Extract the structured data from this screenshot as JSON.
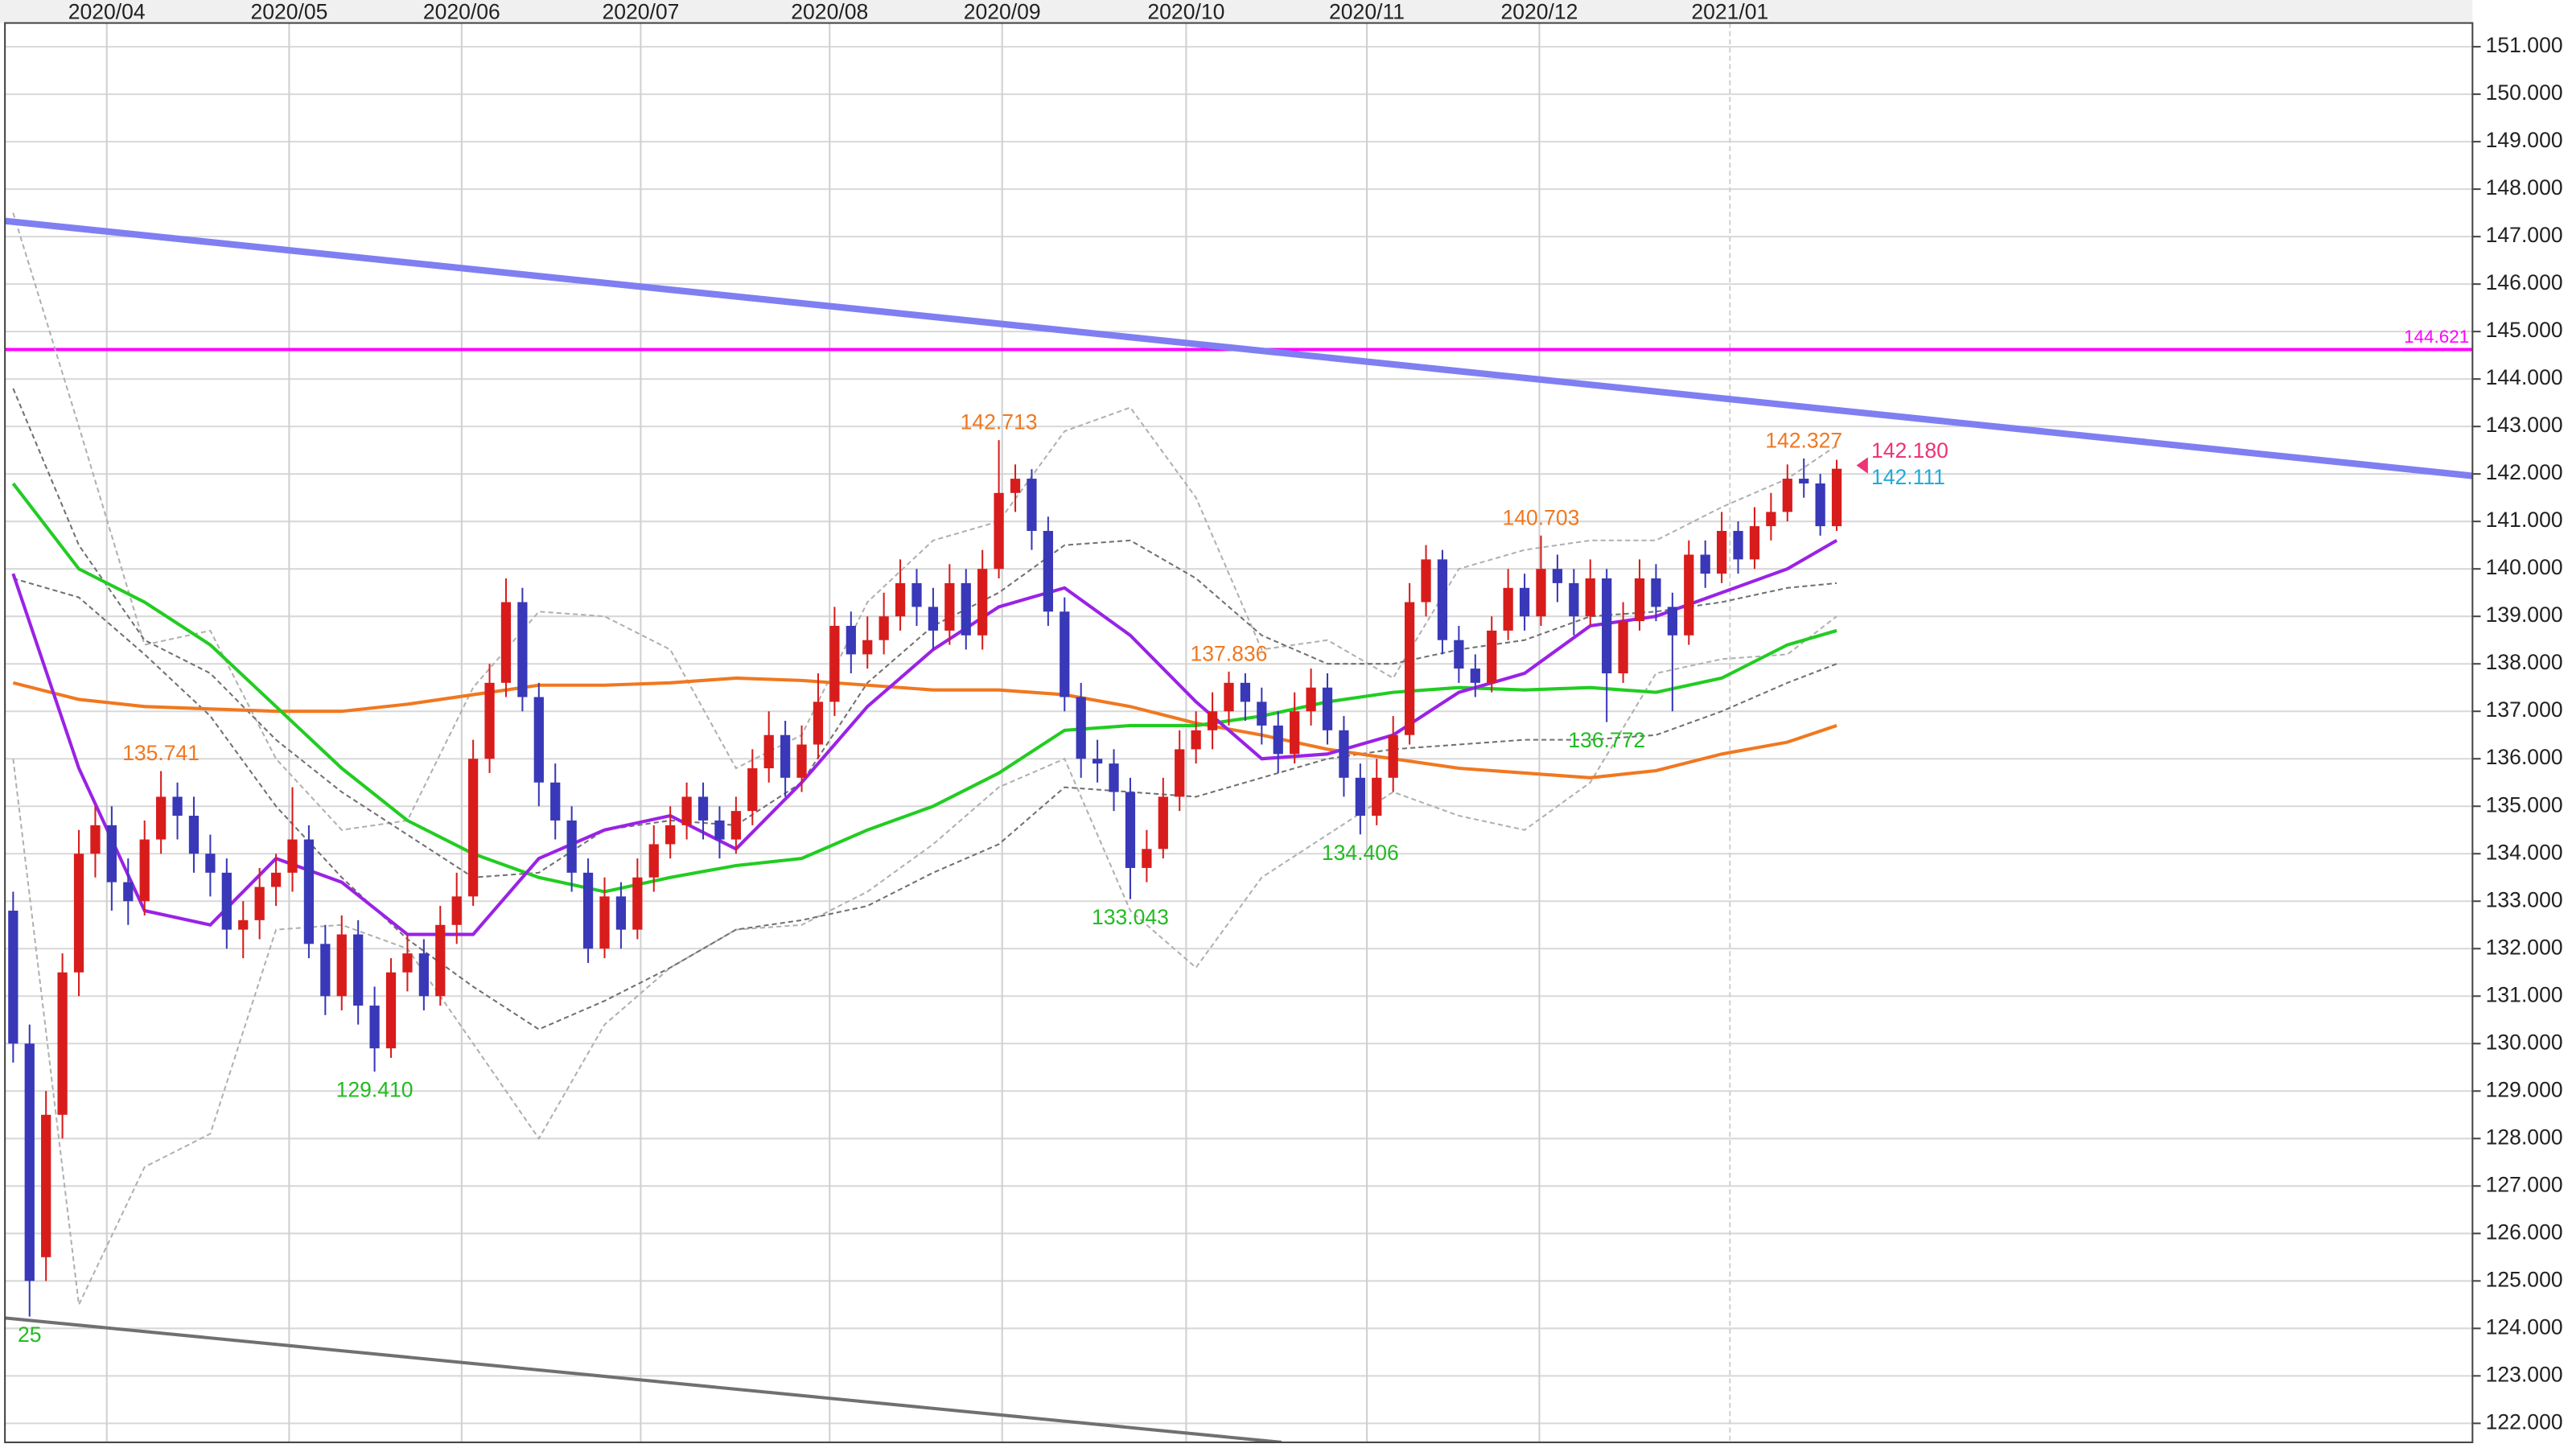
{
  "chart_data": {
    "type": "candlestick",
    "xlim": [
      -0.5,
      149.7
    ],
    "ylim": [
      121.6,
      151.5
    ],
    "grid": true,
    "up_color": "#d81c1c",
    "down_color": "#3838b8",
    "xticks": [
      {
        "value": 5.7,
        "label": "2020/04"
      },
      {
        "value": 16.8,
        "label": "2020/05"
      },
      {
        "value": 27.3,
        "label": "2020/06"
      },
      {
        "value": 38.2,
        "label": "2020/07"
      },
      {
        "value": 49.7,
        "label": "2020/08"
      },
      {
        "value": 60.2,
        "label": "2020/09"
      },
      {
        "value": 71.4,
        "label": "2020/10"
      },
      {
        "value": 82.4,
        "label": "2020/11"
      },
      {
        "value": 92.9,
        "label": "2020/12"
      },
      {
        "value": 104.5,
        "label": "2021/01"
      }
    ],
    "yticks": [
      {
        "value": 122,
        "label": "122.000"
      },
      {
        "value": 123,
        "label": "123.000"
      },
      {
        "value": 124,
        "label": "124.000"
      },
      {
        "value": 125,
        "label": "125.000"
      },
      {
        "value": 126,
        "label": "126.000"
      },
      {
        "value": 127,
        "label": "127.000"
      },
      {
        "value": 128,
        "label": "128.000"
      },
      {
        "value": 129,
        "label": "129.000"
      },
      {
        "value": 130,
        "label": "130.000"
      },
      {
        "value": 131,
        "label": "131.000"
      },
      {
        "value": 132,
        "label": "132.000"
      },
      {
        "value": 133,
        "label": "133.000"
      },
      {
        "value": 134,
        "label": "134.000"
      },
      {
        "value": 135,
        "label": "135.000"
      },
      {
        "value": 136,
        "label": "136.000"
      },
      {
        "value": 137,
        "label": "137.000"
      },
      {
        "value": 138,
        "label": "138.000"
      },
      {
        "value": 139,
        "label": "139.000"
      },
      {
        "value": 140,
        "label": "140.000"
      },
      {
        "value": 141,
        "label": "141.000"
      },
      {
        "value": 142,
        "label": "142.000"
      },
      {
        "value": 143,
        "label": "143.000"
      },
      {
        "value": 144,
        "label": "144.000"
      },
      {
        "value": 145,
        "label": "145.000"
      },
      {
        "value": 146,
        "label": "146.000"
      },
      {
        "value": 147,
        "label": "147.000"
      },
      {
        "value": 148,
        "label": "148.000"
      },
      {
        "value": 149,
        "label": "149.000"
      },
      {
        "value": 150,
        "label": "150.000"
      },
      {
        "value": 151,
        "label": "151.000"
      }
    ],
    "open": [
      132.8,
      130.0,
      125.5,
      128.5,
      131.5,
      134.0,
      134.6,
      133.4,
      133.0,
      134.3,
      135.2,
      134.8,
      134.0,
      133.6,
      132.4,
      132.6,
      133.3,
      133.6,
      134.3,
      132.1,
      131.0,
      132.3,
      130.8,
      129.9,
      131.5,
      131.9,
      131.0,
      132.5,
      133.1,
      136.0,
      137.6,
      139.3,
      137.3,
      135.5,
      134.7,
      133.6,
      132.0,
      133.1,
      132.4,
      133.5,
      134.2,
      134.6,
      135.2,
      134.7,
      134.3,
      134.9,
      135.8,
      136.5,
      135.6,
      136.3,
      137.2,
      138.8,
      138.2,
      138.5,
      139.0,
      139.7,
      139.2,
      138.7,
      139.7,
      138.6,
      140.0,
      141.6,
      141.9,
      140.8,
      139.1,
      137.3,
      136.0,
      135.9,
      135.3,
      133.7,
      134.1,
      135.2,
      136.2,
      136.6,
      137.0,
      137.6,
      137.2,
      136.7,
      136.1,
      137.0,
      137.5,
      136.6,
      135.6,
      134.8,
      135.6,
      136.5,
      139.3,
      140.2,
      138.5,
      137.9,
      137.6,
      138.7,
      139.6,
      139.0,
      140.0,
      139.7,
      139.0,
      139.8,
      137.8,
      138.9,
      139.8,
      139.2,
      138.6,
      140.3,
      139.9,
      140.8,
      140.2,
      140.9,
      141.2,
      141.9,
      141.8,
      140.9
    ],
    "high": [
      133.2,
      130.4,
      129.0,
      131.9,
      134.5,
      135.0,
      135.0,
      133.9,
      134.7,
      135.741,
      135.5,
      135.2,
      134.4,
      133.9,
      133.0,
      133.7,
      134.0,
      135.4,
      134.6,
      132.5,
      132.7,
      132.6,
      131.2,
      131.8,
      132.3,
      132.2,
      132.9,
      133.6,
      136.4,
      138.0,
      139.8,
      139.6,
      137.6,
      135.9,
      135.0,
      133.9,
      133.5,
      133.4,
      133.9,
      134.6,
      135.0,
      135.5,
      135.5,
      135.0,
      135.2,
      136.2,
      137.0,
      136.8,
      136.7,
      137.8,
      139.2,
      139.1,
      139.0,
      139.5,
      140.2,
      140.0,
      139.6,
      140.1,
      140.0,
      140.4,
      142.713,
      142.2,
      142.1,
      141.1,
      139.4,
      137.6,
      136.4,
      136.2,
      135.6,
      134.5,
      135.6,
      136.6,
      137.0,
      137.4,
      137.836,
      137.8,
      137.5,
      137.0,
      137.4,
      137.9,
      137.8,
      136.9,
      135.9,
      136.0,
      136.9,
      139.7,
      140.5,
      140.4,
      138.8,
      138.2,
      139.0,
      140.0,
      139.9,
      140.703,
      140.3,
      140.0,
      140.2,
      140.0,
      139.3,
      140.2,
      140.1,
      139.5,
      140.6,
      140.6,
      141.2,
      141.0,
      141.3,
      141.6,
      142.2,
      142.327,
      142.0,
      142.3
    ],
    "low": [
      129.6,
      124.25,
      125.0,
      128.0,
      131.0,
      133.5,
      132.8,
      132.5,
      132.7,
      134.0,
      134.3,
      133.6,
      133.1,
      132.0,
      131.8,
      132.2,
      132.9,
      133.2,
      131.8,
      130.6,
      130.7,
      130.4,
      129.41,
      129.7,
      131.1,
      130.7,
      130.8,
      132.1,
      132.9,
      135.7,
      137.3,
      137.0,
      135.0,
      134.3,
      133.2,
      131.7,
      131.8,
      132.0,
      132.2,
      133.2,
      133.9,
      134.3,
      134.3,
      133.9,
      134.0,
      134.6,
      135.5,
      135.2,
      135.3,
      136.0,
      136.9,
      137.8,
      137.9,
      138.2,
      138.7,
      138.8,
      138.3,
      138.4,
      138.3,
      138.3,
      139.8,
      141.2,
      140.4,
      138.8,
      137.0,
      135.6,
      135.5,
      134.9,
      133.043,
      133.4,
      133.9,
      134.9,
      135.9,
      136.2,
      136.7,
      136.8,
      136.3,
      135.7,
      135.9,
      136.7,
      136.3,
      135.2,
      134.406,
      134.6,
      135.3,
      136.3,
      139.0,
      138.2,
      137.6,
      137.3,
      137.4,
      138.5,
      138.7,
      138.8,
      139.3,
      138.6,
      138.8,
      136.772,
      137.6,
      138.7,
      138.9,
      137.0,
      138.4,
      139.6,
      139.7,
      139.9,
      140.0,
      140.6,
      141.0,
      141.5,
      140.7,
      140.8
    ],
    "close": [
      130.0,
      125.0,
      128.5,
      131.5,
      134.0,
      134.6,
      133.4,
      133.0,
      134.3,
      135.2,
      134.8,
      134.0,
      133.6,
      132.4,
      132.6,
      133.3,
      133.6,
      134.3,
      132.1,
      131.0,
      132.3,
      130.8,
      129.9,
      131.5,
      131.9,
      131.0,
      132.5,
      133.1,
      136.0,
      137.6,
      139.3,
      137.3,
      135.5,
      134.7,
      133.6,
      132.0,
      133.1,
      132.4,
      133.5,
      134.2,
      134.6,
      135.2,
      134.7,
      134.3,
      134.9,
      135.8,
      136.5,
      135.6,
      136.3,
      137.2,
      138.8,
      138.2,
      138.5,
      139.0,
      139.7,
      139.2,
      138.7,
      139.7,
      138.6,
      140.0,
      141.6,
      141.9,
      140.8,
      139.1,
      137.3,
      136.0,
      135.9,
      135.3,
      133.7,
      134.1,
      135.2,
      136.2,
      136.6,
      137.0,
      137.6,
      137.2,
      136.7,
      136.1,
      137.0,
      137.5,
      136.6,
      135.6,
      134.8,
      135.6,
      136.5,
      139.3,
      140.2,
      138.5,
      137.9,
      137.6,
      138.7,
      139.6,
      139.0,
      140.0,
      139.7,
      139.0,
      139.8,
      137.8,
      138.9,
      139.8,
      139.2,
      138.6,
      140.3,
      139.9,
      140.8,
      140.2,
      140.9,
      141.2,
      141.9,
      141.8,
      140.9,
      142.11
    ],
    "line_x": [
      0,
      4,
      8,
      12,
      16,
      20,
      24,
      28,
      32,
      36,
      40,
      44,
      48,
      52,
      56,
      60,
      64,
      68,
      72,
      76,
      80,
      84,
      88,
      92,
      96,
      100,
      104,
      108,
      111
    ],
    "lines": [
      {
        "color": "#b0b0b0",
        "width": 1,
        "dashed": true,
        "values": [
          147.5,
          143.0,
          138.4,
          138.7,
          136.0,
          134.5,
          134.7,
          137.5,
          139.1,
          139.0,
          138.3,
          135.8,
          136.5,
          139.3,
          140.6,
          141.0,
          142.9,
          143.4,
          141.5,
          138.3,
          138.5,
          137.7,
          140.0,
          140.4,
          140.6,
          140.6,
          141.3,
          141.9,
          142.6
        ]
      },
      {
        "color": "#b0b0b0",
        "width": 1,
        "dashed": true,
        "values": [
          136.0,
          124.5,
          127.4,
          128.1,
          132.4,
          132.5,
          132.0,
          130.0,
          128.0,
          130.4,
          131.6,
          132.4,
          132.5,
          133.2,
          134.2,
          135.4,
          136.0,
          132.8,
          131.6,
          133.5,
          134.4,
          135.3,
          134.8,
          134.5,
          135.5,
          137.8,
          138.1,
          138.2,
          139.0
        ]
      },
      {
        "color": "#707070",
        "width": 1,
        "dashed": true,
        "values": [
          143.8,
          140.5,
          138.5,
          137.8,
          136.4,
          135.3,
          134.4,
          133.5,
          133.6,
          134.5,
          134.7,
          134.6,
          135.5,
          137.6,
          138.8,
          139.5,
          140.5,
          140.6,
          139.8,
          138.6,
          138.0,
          138.0,
          138.3,
          138.5,
          139.0,
          139.1,
          139.3,
          139.6,
          139.7
        ]
      },
      {
        "color": "#707070",
        "width": 1,
        "dashed": true,
        "values": [
          139.8,
          139.4,
          138.2,
          136.9,
          135.0,
          133.5,
          132.2,
          131.2,
          130.3,
          130.9,
          131.6,
          132.4,
          132.6,
          132.9,
          133.6,
          134.2,
          135.4,
          135.3,
          135.2,
          135.6,
          136.0,
          136.2,
          136.3,
          136.4,
          136.4,
          136.5,
          137.0,
          137.6,
          138.0
        ]
      },
      {
        "color": "#f07820",
        "width": 2,
        "dashed": false,
        "values": [
          137.6,
          137.25,
          137.1,
          137.05,
          137.0,
          137.0,
          137.15,
          137.35,
          137.55,
          137.55,
          137.6,
          137.7,
          137.65,
          137.55,
          137.45,
          137.45,
          137.35,
          137.1,
          136.75,
          136.5,
          136.2,
          136.0,
          135.8,
          135.7,
          135.6,
          135.75,
          136.1,
          136.35,
          136.7
        ]
      },
      {
        "color": "#22cc22",
        "width": 2,
        "dashed": false,
        "values": [
          141.8,
          140.0,
          139.3,
          138.4,
          137.1,
          135.8,
          134.7,
          134.0,
          133.5,
          133.2,
          133.5,
          133.75,
          133.9,
          134.5,
          135.0,
          135.7,
          136.6,
          136.7,
          136.7,
          136.9,
          137.2,
          137.4,
          137.5,
          137.45,
          137.5,
          137.4,
          137.7,
          138.4,
          138.7
        ]
      },
      {
        "color": "#9a22e6",
        "width": 2,
        "dashed": false,
        "values": [
          139.9,
          135.8,
          132.8,
          132.5,
          133.9,
          133.4,
          132.3,
          132.3,
          133.9,
          134.5,
          134.8,
          134.1,
          135.5,
          137.1,
          138.3,
          139.2,
          139.6,
          138.6,
          137.2,
          136.0,
          136.1,
          136.5,
          137.4,
          137.8,
          138.8,
          139.0,
          139.5,
          140.0,
          140.6
        ]
      }
    ],
    "trendlines": [
      {
        "color": "#7f7ff2",
        "width": 4,
        "x": [
          -0.5,
          149.7
        ],
        "values": [
          147.33,
          141.96
        ]
      },
      {
        "color": "#707070",
        "width": 2,
        "x": [
          -0.5,
          77.2
        ],
        "values": [
          124.22,
          121.6
        ]
      }
    ],
    "hlines": [
      {
        "color": "#ff00ff",
        "value": 144.621,
        "label": "144.621"
      }
    ],
    "annotations": [
      {
        "text": "25",
        "candle": 1,
        "position": "below",
        "color": "#22bb22"
      },
      {
        "text": "135.741",
        "candle": 9,
        "position": "above",
        "color": "#f07820"
      },
      {
        "text": "129.410",
        "candle": 22,
        "position": "below",
        "color": "#22bb22"
      },
      {
        "text": "142.713",
        "candle": 60,
        "position": "above",
        "color": "#f07820"
      },
      {
        "text": "133.043",
        "candle": 68,
        "position": "below",
        "color": "#22bb22"
      },
      {
        "text": "137.836",
        "candle": 74,
        "position": "above",
        "color": "#f07820"
      },
      {
        "text": "134.406",
        "candle": 82,
        "position": "below",
        "color": "#22bb22"
      },
      {
        "text": "140.703",
        "candle": 93,
        "position": "above",
        "color": "#f07820"
      },
      {
        "text": "136.772",
        "candle": 97,
        "position": "below",
        "color": "#22bb22"
      },
      {
        "text": "142.327",
        "candle": 109,
        "position": "above",
        "color": "#f07820"
      }
    ],
    "quotes": [
      {
        "value": 142.18,
        "label": "142.180",
        "color": "#ee3377"
      },
      {
        "value": 142.111,
        "label": "142.111",
        "color": "#22aadd"
      }
    ]
  }
}
